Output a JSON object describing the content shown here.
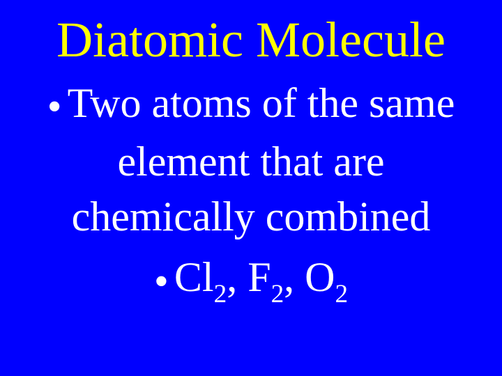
{
  "slide": {
    "background_color": "#0000ff",
    "title": {
      "text": "Diatomic Molecule",
      "color": "#ffff00",
      "font_size_pt": 54,
      "font_family": "Times New Roman"
    },
    "body_color": "#ffffff",
    "body_font_size_pt": 45,
    "bullets": [
      {
        "lines": [
          "Two atoms of the same",
          "element that are",
          "chemically combined"
        ]
      },
      {
        "formulas": [
          {
            "element": "Cl",
            "subscript": "2"
          },
          {
            "element": "F",
            "subscript": "2"
          },
          {
            "element": "O",
            "subscript": "2"
          }
        ],
        "separator": ", "
      }
    ],
    "bullet_marker": "•"
  }
}
